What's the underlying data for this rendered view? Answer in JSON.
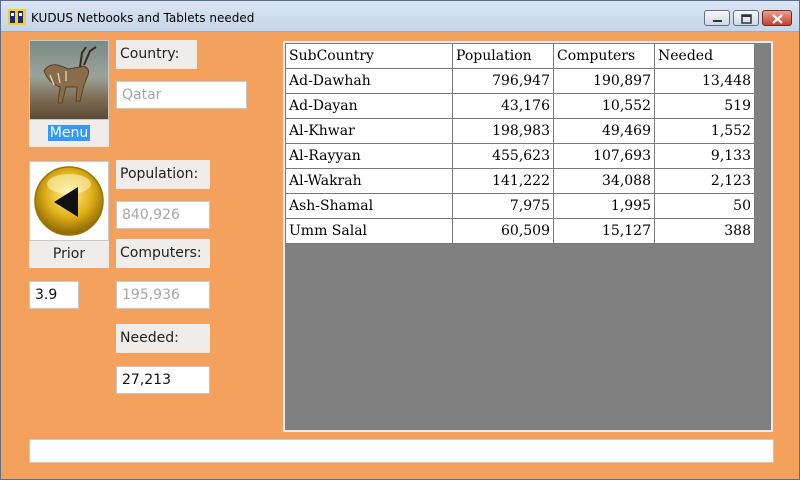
{
  "window": {
    "title": "KUDUS Netbooks and Tablets needed"
  },
  "left": {
    "menu_label": "Menu",
    "prior_label": "Prior",
    "version": "3.9"
  },
  "fields": {
    "country_label": "Country:",
    "country_value": "Qatar",
    "population_label": "Population:",
    "population_value": "840,926",
    "computers_label": "Computers:",
    "computers_value": "195,936",
    "needed_label": "Needed:",
    "needed_value": "27,213"
  },
  "table": {
    "headers": [
      "SubCountry",
      "Population",
      "Computers",
      "Needed"
    ],
    "rows": [
      [
        "Ad-Dawhah",
        "796,947",
        "190,897",
        "13,448"
      ],
      [
        "Ad-Dayan",
        "43,176",
        "10,552",
        "519"
      ],
      [
        "Al-Khwar",
        "198,983",
        "49,469",
        "1,552"
      ],
      [
        "Al-Rayyan",
        "455,623",
        "107,693",
        "9,133"
      ],
      [
        "Al-Wakrah",
        "141,222",
        "34,088",
        "2,123"
      ],
      [
        "Ash-Shamal",
        "7,975",
        "1,995",
        "50"
      ],
      [
        "Umm Salal",
        "60,509",
        "15,127",
        "388"
      ]
    ]
  },
  "status": {
    "text": ""
  }
}
